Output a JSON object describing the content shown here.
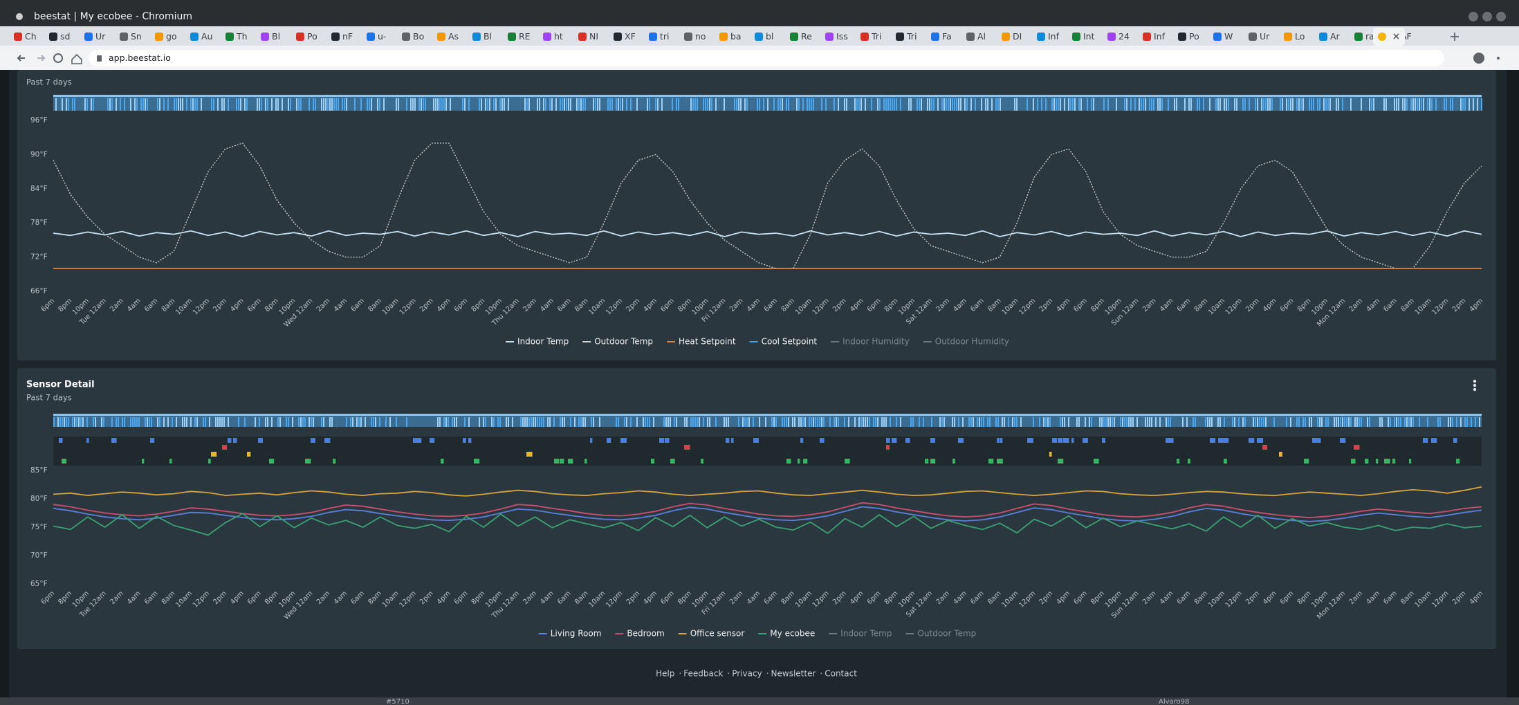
{
  "window": {
    "title": "beestat | My ecobee - Chromium"
  },
  "tabs": [
    "Ch",
    "sd",
    "Ur",
    "Sn",
    "go",
    "Au",
    "Th",
    "Bl",
    "Po",
    "nF",
    "u-",
    "Bo",
    "As",
    "Bl",
    "RE",
    "ht",
    "NI",
    "XF",
    "tri",
    "no",
    "ba",
    "bl",
    "Re",
    "Iss",
    "Tri",
    "Tri",
    "Fa",
    "Al",
    "DI",
    "Inf",
    "Int",
    "24",
    "Inf",
    "Po",
    "W",
    "Ur",
    "Lo",
    "Ar",
    "ra",
    "AF"
  ],
  "address_bar": {
    "url": "app.beestat.io"
  },
  "time_labels": [
    "6pm",
    "8pm",
    "10pm",
    "Tue 12am",
    "2am",
    "4am",
    "6am",
    "8am",
    "10am",
    "12pm",
    "2pm",
    "4pm",
    "6pm",
    "8pm",
    "10pm",
    "Wed 12am",
    "2am",
    "4am",
    "6am",
    "8am",
    "10am",
    "12pm",
    "2pm",
    "4pm",
    "6pm",
    "8pm",
    "10pm",
    "Thu 12am",
    "2am",
    "4am",
    "6am",
    "8am",
    "10am",
    "12pm",
    "2pm",
    "4pm",
    "6pm",
    "8pm",
    "10pm",
    "Fri 12am",
    "2am",
    "4am",
    "6am",
    "8am",
    "10am",
    "12pm",
    "2pm",
    "4pm",
    "6pm",
    "8pm",
    "10pm",
    "Sat 12am",
    "2am",
    "4am",
    "6am",
    "8am",
    "10am",
    "12pm",
    "2pm",
    "4pm",
    "6pm",
    "8pm",
    "10pm",
    "Sun 12am",
    "2am",
    "4am",
    "6am",
    "8am",
    "10am",
    "12pm",
    "2pm",
    "4pm",
    "6pm",
    "8pm",
    "10pm",
    "Mon 12am",
    "2am",
    "4am",
    "6am",
    "8am",
    "10am",
    "12pm",
    "2pm",
    "4pm"
  ],
  "charts": [
    {
      "type": "line",
      "subtitle": "Past 7 days",
      "ylim": [
        66,
        96
      ],
      "yticks": [
        {
          "value": 66,
          "label": "66°F"
        },
        {
          "value": 72,
          "label": "72°F"
        },
        {
          "value": 78,
          "label": "78°F"
        },
        {
          "value": 84,
          "label": "84°F"
        },
        {
          "value": 90,
          "label": "90°F"
        },
        {
          "value": 96,
          "label": "96°F"
        }
      ],
      "grid": false,
      "series": [
        {
          "name": "Indoor Temp",
          "color": "#c6e2f2",
          "visible": true,
          "values": [
            76.2,
            75.8,
            76.4,
            75.9,
            76.5,
            75.7,
            76.3,
            76.0,
            76.6,
            75.8,
            76.4,
            75.6,
            76.5,
            75.9,
            76.3,
            75.7,
            76.6,
            75.8,
            76.2,
            76.0,
            76.5,
            75.7,
            76.4,
            75.9,
            76.6,
            75.8,
            76.3,
            75.6,
            76.5,
            76.0,
            76.2,
            75.8,
            76.6,
            75.7,
            76.4,
            75.9,
            76.3,
            75.8,
            76.5,
            75.6,
            76.4,
            76.0,
            76.2,
            75.7,
            76.6,
            75.9,
            76.3,
            75.8,
            76.5,
            75.7,
            76.4,
            76.0,
            76.2,
            75.8,
            76.6,
            75.6,
            76.3,
            75.9,
            76.5,
            75.7,
            76.4,
            76.0,
            76.2,
            75.8,
            76.6,
            75.7,
            76.3,
            75.9,
            76.5,
            75.6,
            76.4,
            75.8,
            76.2,
            76.0,
            76.6,
            75.7,
            76.3,
            75.9,
            76.5,
            75.8,
            76.4,
            75.7,
            76.6,
            76.0
          ]
        },
        {
          "name": "Outdoor Temp",
          "color": "#cfd4d6",
          "visible": true,
          "dashed": true,
          "values": [
            89,
            83,
            79,
            76,
            74,
            72,
            71,
            73,
            80,
            87,
            91,
            92,
            88,
            82,
            78,
            75,
            73,
            72,
            72,
            74,
            82,
            89,
            92,
            92,
            86,
            80,
            76,
            74,
            73,
            72,
            71,
            72,
            78,
            85,
            89,
            90,
            87,
            82,
            78,
            75,
            73,
            71,
            70,
            70,
            76,
            85,
            89,
            91,
            88,
            82,
            77,
            74,
            73,
            72,
            71,
            72,
            78,
            86,
            90,
            91,
            87,
            80,
            76,
            74,
            73,
            72,
            72,
            73,
            78,
            84,
            88,
            89,
            87,
            82,
            77,
            74,
            72,
            71,
            70,
            70,
            74,
            80,
            85,
            88
          ]
        },
        {
          "name": "Heat Setpoint",
          "color": "#d9843f",
          "visible": true,
          "values": [
            70,
            70,
            70,
            70,
            70,
            70,
            70,
            70,
            70,
            70,
            70,
            70,
            70,
            70,
            70,
            70,
            70,
            70,
            70,
            70,
            70,
            70,
            70,
            70,
            70,
            70,
            70,
            70,
            70,
            70,
            70,
            70,
            70,
            70,
            70,
            70,
            70,
            70,
            70,
            70,
            70,
            70,
            70,
            70,
            70,
            70,
            70,
            70,
            70,
            70,
            70,
            70,
            70,
            70,
            70,
            70,
            70,
            70,
            70,
            70,
            70,
            70,
            70,
            70,
            70,
            70,
            70,
            70,
            70,
            70,
            70,
            70,
            70,
            70,
            70,
            70,
            70,
            70,
            70,
            70,
            70,
            70,
            70,
            70
          ]
        },
        {
          "name": "Cool Setpoint",
          "color": "#4a9fe0",
          "visible": true
        },
        {
          "name": "Indoor Humidity",
          "color": "#6f7d84",
          "visible": false
        },
        {
          "name": "Outdoor Humidity",
          "color": "#5c686e",
          "visible": false
        }
      ]
    },
    {
      "type": "line",
      "title": "Sensor Detail",
      "subtitle": "Past 7 days",
      "ylim": [
        65,
        85
      ],
      "yticks": [
        {
          "value": 65,
          "label": "65°F"
        },
        {
          "value": 70,
          "label": "70°F"
        },
        {
          "value": 75,
          "label": "75°F"
        },
        {
          "value": 80,
          "label": "80°F"
        },
        {
          "value": 85,
          "label": "85°F"
        }
      ],
      "grid": false,
      "series": [
        {
          "name": "Living Room",
          "color": "#5b80d9",
          "visible": true,
          "values": [
            78.3,
            77.9,
            77.3,
            76.8,
            76.5,
            76.3,
            76.6,
            77.1,
            77.6,
            77.5,
            77.1,
            76.7,
            76.4,
            76.3,
            76.5,
            76.9,
            77.6,
            78.1,
            77.9,
            77.4,
            77.0,
            76.6,
            76.3,
            76.2,
            76.4,
            76.8,
            77.5,
            78.2,
            78.0,
            77.5,
            77.1,
            76.7,
            76.4,
            76.3,
            76.6,
            77.1,
            77.9,
            78.5,
            78.2,
            77.6,
            77.1,
            76.6,
            76.3,
            76.2,
            76.5,
            77.0,
            77.8,
            78.6,
            78.3,
            77.7,
            77.2,
            76.7,
            76.3,
            76.1,
            76.3,
            76.8,
            77.6,
            78.4,
            78.1,
            77.5,
            77.0,
            76.5,
            76.2,
            76.1,
            76.4,
            76.9,
            77.7,
            78.3,
            78.0,
            77.4,
            76.9,
            76.5,
            76.2,
            76.0,
            76.2,
            76.6,
            77.1,
            77.5,
            77.2,
            76.9,
            76.7,
            77.1,
            77.6,
            78.0
          ]
        },
        {
          "name": "Bedroom",
          "color": "#c9506e",
          "visible": true,
          "values": [
            79.0,
            78.6,
            78.0,
            77.5,
            77.2,
            77.0,
            77.3,
            77.8,
            78.4,
            78.2,
            77.8,
            77.4,
            77.1,
            77.0,
            77.2,
            77.6,
            78.3,
            78.9,
            78.7,
            78.2,
            77.7,
            77.3,
            77.0,
            76.9,
            77.1,
            77.5,
            78.2,
            79.0,
            78.8,
            78.3,
            77.9,
            77.4,
            77.1,
            77.0,
            77.3,
            77.8,
            78.6,
            79.2,
            78.9,
            78.3,
            77.8,
            77.3,
            77.0,
            76.9,
            77.2,
            77.7,
            78.5,
            79.3,
            79.0,
            78.4,
            77.9,
            77.4,
            77.0,
            76.8,
            77.0,
            77.5,
            78.3,
            79.1,
            78.8,
            78.2,
            77.7,
            77.2,
            76.9,
            76.8,
            77.1,
            77.6,
            78.4,
            79.0,
            78.7,
            78.1,
            77.6,
            77.2,
            76.9,
            76.7,
            76.9,
            77.3,
            77.8,
            78.2,
            77.9,
            77.6,
            77.4,
            77.8,
            78.3,
            78.6
          ]
        },
        {
          "name": "Office sensor",
          "color": "#d8a43b",
          "visible": true,
          "values": [
            80.8,
            81.0,
            80.6,
            80.9,
            81.2,
            81.0,
            80.7,
            80.9,
            81.3,
            81.1,
            80.6,
            80.8,
            81.0,
            80.7,
            81.1,
            81.4,
            81.2,
            80.8,
            80.6,
            80.9,
            81.0,
            81.3,
            81.1,
            80.7,
            80.5,
            80.8,
            81.2,
            81.5,
            81.3,
            80.9,
            80.7,
            80.6,
            80.9,
            81.1,
            81.4,
            81.2,
            80.8,
            80.6,
            80.8,
            81.0,
            81.3,
            81.4,
            81.0,
            80.7,
            80.6,
            80.9,
            81.2,
            81.5,
            81.2,
            80.8,
            80.6,
            80.7,
            81.0,
            81.3,
            81.4,
            81.1,
            80.8,
            80.6,
            80.8,
            81.1,
            81.4,
            81.3,
            80.9,
            80.7,
            80.6,
            80.8,
            81.1,
            81.3,
            81.2,
            80.9,
            80.7,
            80.6,
            80.9,
            81.2,
            81.0,
            80.8,
            80.6,
            80.9,
            81.3,
            81.6,
            81.4,
            81.0,
            81.5,
            82.1
          ]
        },
        {
          "name": "My ecobee",
          "color": "#3aa173",
          "visible": true,
          "values": [
            75.2,
            74.6,
            76.8,
            75.0,
            77.2,
            74.8,
            76.9,
            75.3,
            74.5,
            73.6,
            75.8,
            77.4,
            75.1,
            77.0,
            74.9,
            76.6,
            75.4,
            76.2,
            75.0,
            76.8,
            75.3,
            74.8,
            75.5,
            74.2,
            76.9,
            75.0,
            77.3,
            75.2,
            76.8,
            74.9,
            76.3,
            75.6,
            74.9,
            75.8,
            74.4,
            76.7,
            75.1,
            77.1,
            74.9,
            76.8,
            75.2,
            76.4,
            75.0,
            74.5,
            75.9,
            73.9,
            76.5,
            75.0,
            77.2,
            75.1,
            76.9,
            74.8,
            76.2,
            75.3,
            74.6,
            75.7,
            74.0,
            76.4,
            75.2,
            77.0,
            74.9,
            76.6,
            75.1,
            76.1,
            75.4,
            74.7,
            75.6,
            74.3,
            76.8,
            75.0,
            77.1,
            74.8,
            76.5,
            75.2,
            75.8,
            75.0,
            74.6,
            75.3,
            74.4,
            75.0,
            74.8,
            75.6,
            74.9,
            75.2
          ]
        },
        {
          "name": "Indoor Temp",
          "color": "#6f7d84",
          "visible": false
        },
        {
          "name": "Outdoor Temp",
          "color": "#5c686e",
          "visible": false
        }
      ]
    }
  ],
  "footer": {
    "links": [
      "Help",
      "Feedback",
      "Privacy",
      "Newsletter",
      "Contact"
    ],
    "separator": "·"
  },
  "taskbar": {
    "items": [
      "#5710",
      "Alvaro98"
    ]
  }
}
